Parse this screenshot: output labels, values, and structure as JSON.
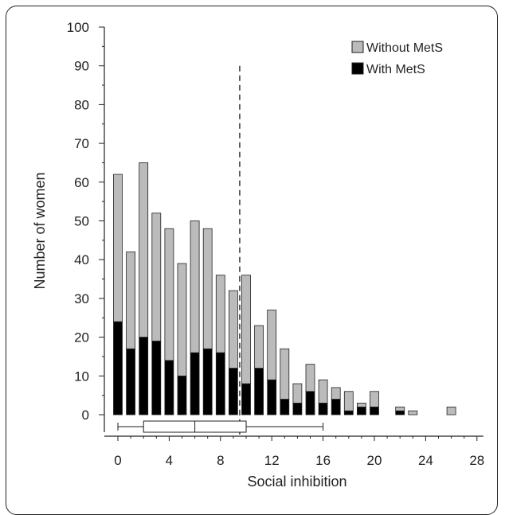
{
  "chart_data": {
    "type": "bar",
    "stacked": true,
    "xlabel": "Social inhibition",
    "ylabel": "Number of women",
    "xlim": [
      0,
      28
    ],
    "ylim": [
      0,
      100
    ],
    "x_ticks": [
      0,
      4,
      8,
      12,
      16,
      20,
      24,
      28
    ],
    "y_ticks": [
      0,
      10,
      20,
      30,
      40,
      50,
      60,
      70,
      80,
      90,
      100
    ],
    "x": [
      0,
      1,
      2,
      3,
      4,
      5,
      6,
      7,
      8,
      9,
      10,
      11,
      12,
      13,
      14,
      15,
      16,
      17,
      18,
      19,
      20,
      22,
      23,
      26
    ],
    "series": [
      {
        "name": "With MetS",
        "color": "#000000",
        "values": [
          24,
          17,
          20,
          19,
          14,
          10,
          16,
          17,
          16,
          12,
          8,
          12,
          9,
          4,
          3,
          6,
          3,
          4,
          1,
          2,
          2,
          1,
          0,
          0
        ]
      },
      {
        "name": "Without MetS",
        "color": "#bbbbbb",
        "values": [
          38,
          25,
          45,
          33,
          34,
          29,
          34,
          31,
          20,
          20,
          28,
          11,
          18,
          13,
          5,
          7,
          6,
          3,
          5,
          1,
          4,
          1,
          1,
          2
        ]
      }
    ],
    "legend_position": "top-right",
    "cutoff_line": 9.5,
    "boxplot": {
      "min": 0,
      "q1": 2,
      "median": 6,
      "q3": 10,
      "max": 16
    }
  }
}
